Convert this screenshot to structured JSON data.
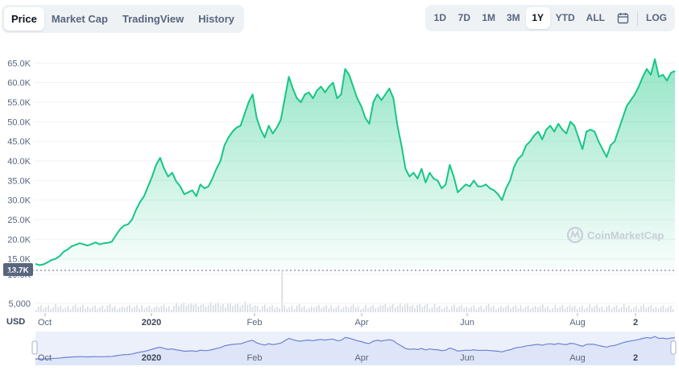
{
  "tabs": [
    {
      "label": "Price",
      "active": true
    },
    {
      "label": "Market Cap",
      "active": false
    },
    {
      "label": "TradingView",
      "active": false
    },
    {
      "label": "History",
      "active": false
    }
  ],
  "ranges": [
    {
      "label": "1D",
      "active": false
    },
    {
      "label": "7D",
      "active": false
    },
    {
      "label": "1M",
      "active": false
    },
    {
      "label": "3M",
      "active": false
    },
    {
      "label": "1Y",
      "active": true
    },
    {
      "label": "YTD",
      "active": false
    },
    {
      "label": "ALL",
      "active": false
    }
  ],
  "calendar_icon": "calendar-icon",
  "log_label": "LOG",
  "watermark": "CoinMarketCap",
  "current_price_label": "13.7K",
  "currency_label": "USD",
  "colors": {
    "line": "#16c784",
    "navigator_line": "#6b82d6",
    "navigator_fill": "#dde3f7",
    "volume_bar": "#d5dae2",
    "grid": "#eff2f5"
  },
  "chart_data": {
    "type": "line",
    "series": [
      {
        "values": [
          13700,
          13400,
          13600,
          14100,
          14700,
          15000,
          15700,
          16800,
          17400,
          18200,
          18600,
          19000,
          18700,
          18400,
          18800,
          19200,
          18700,
          19000,
          19100,
          19400,
          21000,
          22500,
          23500,
          23800,
          25000,
          27500,
          29500,
          31000,
          33500,
          36000,
          39000,
          40800,
          38000,
          36000,
          37000,
          34800,
          33500,
          31500,
          32000,
          32500,
          31000,
          34000,
          33000,
          33500,
          35500,
          38000,
          40000,
          44000,
          46000,
          47500,
          48500,
          49000,
          52000,
          55000,
          57000,
          51000,
          48000,
          46000,
          49000,
          47000,
          48500,
          50500,
          56000,
          61500,
          58500,
          56000,
          55000,
          57000,
          57500,
          56000,
          58000,
          59000,
          57500,
          59000,
          60000,
          56000,
          57000,
          63500,
          62000,
          59000,
          56000,
          54000,
          51000,
          49500,
          55000,
          57000,
          55500,
          57000,
          58500,
          56000,
          49000,
          44000,
          38000,
          36000,
          37000,
          35500,
          38000,
          34500,
          37000,
          35500,
          35000,
          33000,
          34000,
          39000,
          36000,
          32000,
          33000,
          34000,
          33500,
          35000,
          33500,
          33500,
          34000,
          33000,
          32500,
          31500,
          30000,
          33000,
          35000,
          38500,
          40500,
          41500,
          44000,
          45000,
          46500,
          47500,
          45500,
          48000,
          49000,
          47500,
          49500,
          48000,
          47000,
          50000,
          49000,
          46000,
          43000,
          47500,
          48000,
          47500,
          45000,
          43000,
          41000,
          44000,
          45000,
          48000,
          51000,
          54000,
          55500,
          57000,
          59000,
          61500,
          63500,
          62000,
          66000,
          61500,
          62000,
          60500,
          62500,
          63000
        ]
      }
    ],
    "x_labels": [
      "Oct",
      "2020",
      "Feb",
      "Apr",
      "Jun",
      "Aug",
      "2"
    ],
    "x_labels_strong": [
      "2020",
      "2"
    ],
    "y_ticks": [
      65000,
      60000,
      55000,
      50000,
      45000,
      40000,
      35000,
      30000,
      25000,
      20000,
      15000
    ],
    "y_tick_labels": [
      "65.0K",
      "60.0K",
      "55.0K",
      "50.0K",
      "45.0K",
      "40.0K",
      "35.0K",
      "30.0K",
      "25.0K",
      "20.0K",
      "15.0K"
    ],
    "ylim": [
      13700,
      66200
    ],
    "volume_ticks": [
      10000,
      5000
    ],
    "volume_tick_labels": [
      "10.0K",
      "5,000"
    ],
    "volume_ylim": [
      3500,
      10800
    ],
    "volume_spike_label": "Feb",
    "grid": true
  }
}
